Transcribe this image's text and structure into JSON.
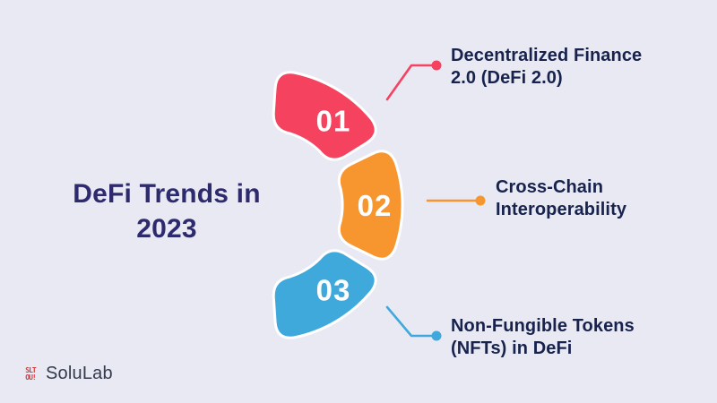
{
  "background": "#E9E9F4",
  "title": {
    "line1": "DeFi Trends in",
    "line2": "2023",
    "color": "#2E2A6E"
  },
  "diagram": {
    "number_color": "#FFFFFF",
    "label_color": "#17234C",
    "segments": [
      {
        "number": "01",
        "color": "#F5425F",
        "label_line1": "Decentralized Finance",
        "label_line2": "2.0 (DeFi 2.0)"
      },
      {
        "number": "02",
        "color": "#F7952F",
        "label_line1": "Cross-Chain",
        "label_line2": "Interoperability"
      },
      {
        "number": "03",
        "color": "#3FA9DC",
        "label_line1": "Non-Fungible Tokens",
        "label_line2": "(NFTs) in DeFi"
      }
    ]
  },
  "footer": {
    "brand": "SoluLab",
    "mark_top": "SLT",
    "mark_bottom": "OU!",
    "mark_color": "#D93A3C",
    "text_color": "#343B4C"
  }
}
